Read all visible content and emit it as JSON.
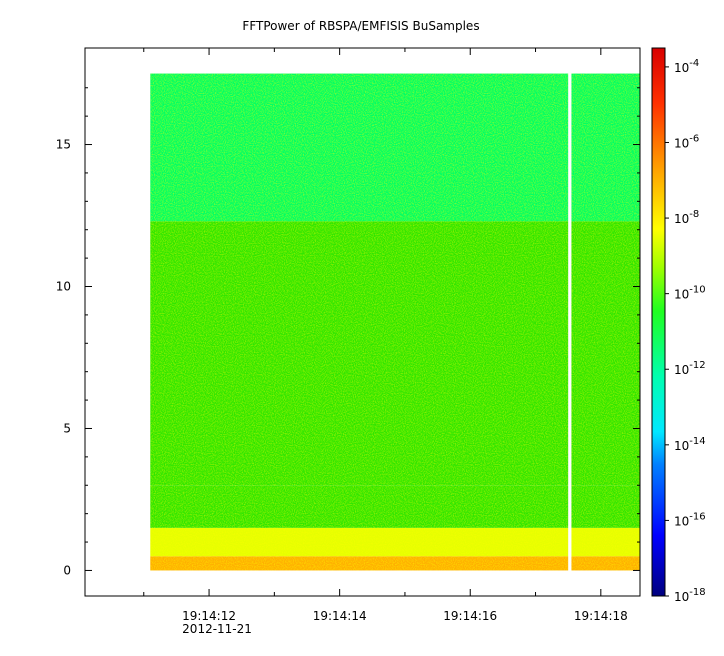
{
  "chart_data": {
    "type": "heatmap",
    "title": "FFTPower of RBSPA/EMFISIS  BuSamples",
    "xlabel": "",
    "ylabel": "",
    "x_ticks": [
      {
        "value": "19:14:12",
        "sublabel": "2012-11-21"
      },
      {
        "value": "19:14:14",
        "sublabel": ""
      },
      {
        "value": "19:14:16",
        "sublabel": ""
      },
      {
        "value": "19:14:18",
        "sublabel": ""
      }
    ],
    "xlim": [
      "19:14:10.1",
      "19:14:18.6"
    ],
    "ylim": [
      -0.9,
      18.4
    ],
    "y_ticks": [
      0,
      5,
      10,
      15
    ],
    "data_time_range": [
      "19:14:11.1",
      "19:14:18.6"
    ],
    "frequency_range": [
      0,
      17.5
    ],
    "gaps": [
      {
        "start": "19:14:17.5",
        "end": "19:14:17.55"
      }
    ],
    "power_bands": [
      {
        "freq_range": [
          0,
          0.5
        ],
        "log10_power": -7.5
      },
      {
        "freq_range": [
          0.5,
          1.5
        ],
        "log10_power": -8.5
      },
      {
        "freq_range": [
          1.5,
          3
        ],
        "log10_power": -9.5
      },
      {
        "freq_range": [
          3,
          12.3
        ],
        "log10_power": -10.5
      },
      {
        "freq_range": [
          12.3,
          17.5
        ],
        "log10_power": -12
      }
    ],
    "colorbar": {
      "scale": "log",
      "range": [
        -18,
        -3.5
      ],
      "ticks": [
        {
          "base": "10",
          "exp": "-4",
          "value": -4
        },
        {
          "base": "10",
          "exp": "-6",
          "value": -6
        },
        {
          "base": "10",
          "exp": "-8",
          "value": -8
        },
        {
          "base": "10",
          "exp": "-10",
          "value": -10
        },
        {
          "base": "10",
          "exp": "-12",
          "value": -12
        },
        {
          "base": "10",
          "exp": "-14",
          "value": -14
        },
        {
          "base": "10",
          "exp": "-16",
          "value": -16
        },
        {
          "base": "10",
          "exp": "-18",
          "value": -18
        }
      ],
      "colormap": [
        "#00007f",
        "#0000ff",
        "#00b4ff",
        "#00ffe0",
        "#00ff64",
        "#30e600",
        "#e6ff00",
        "#ffb000",
        "#ff4000",
        "#e00000"
      ]
    },
    "grid": false
  }
}
